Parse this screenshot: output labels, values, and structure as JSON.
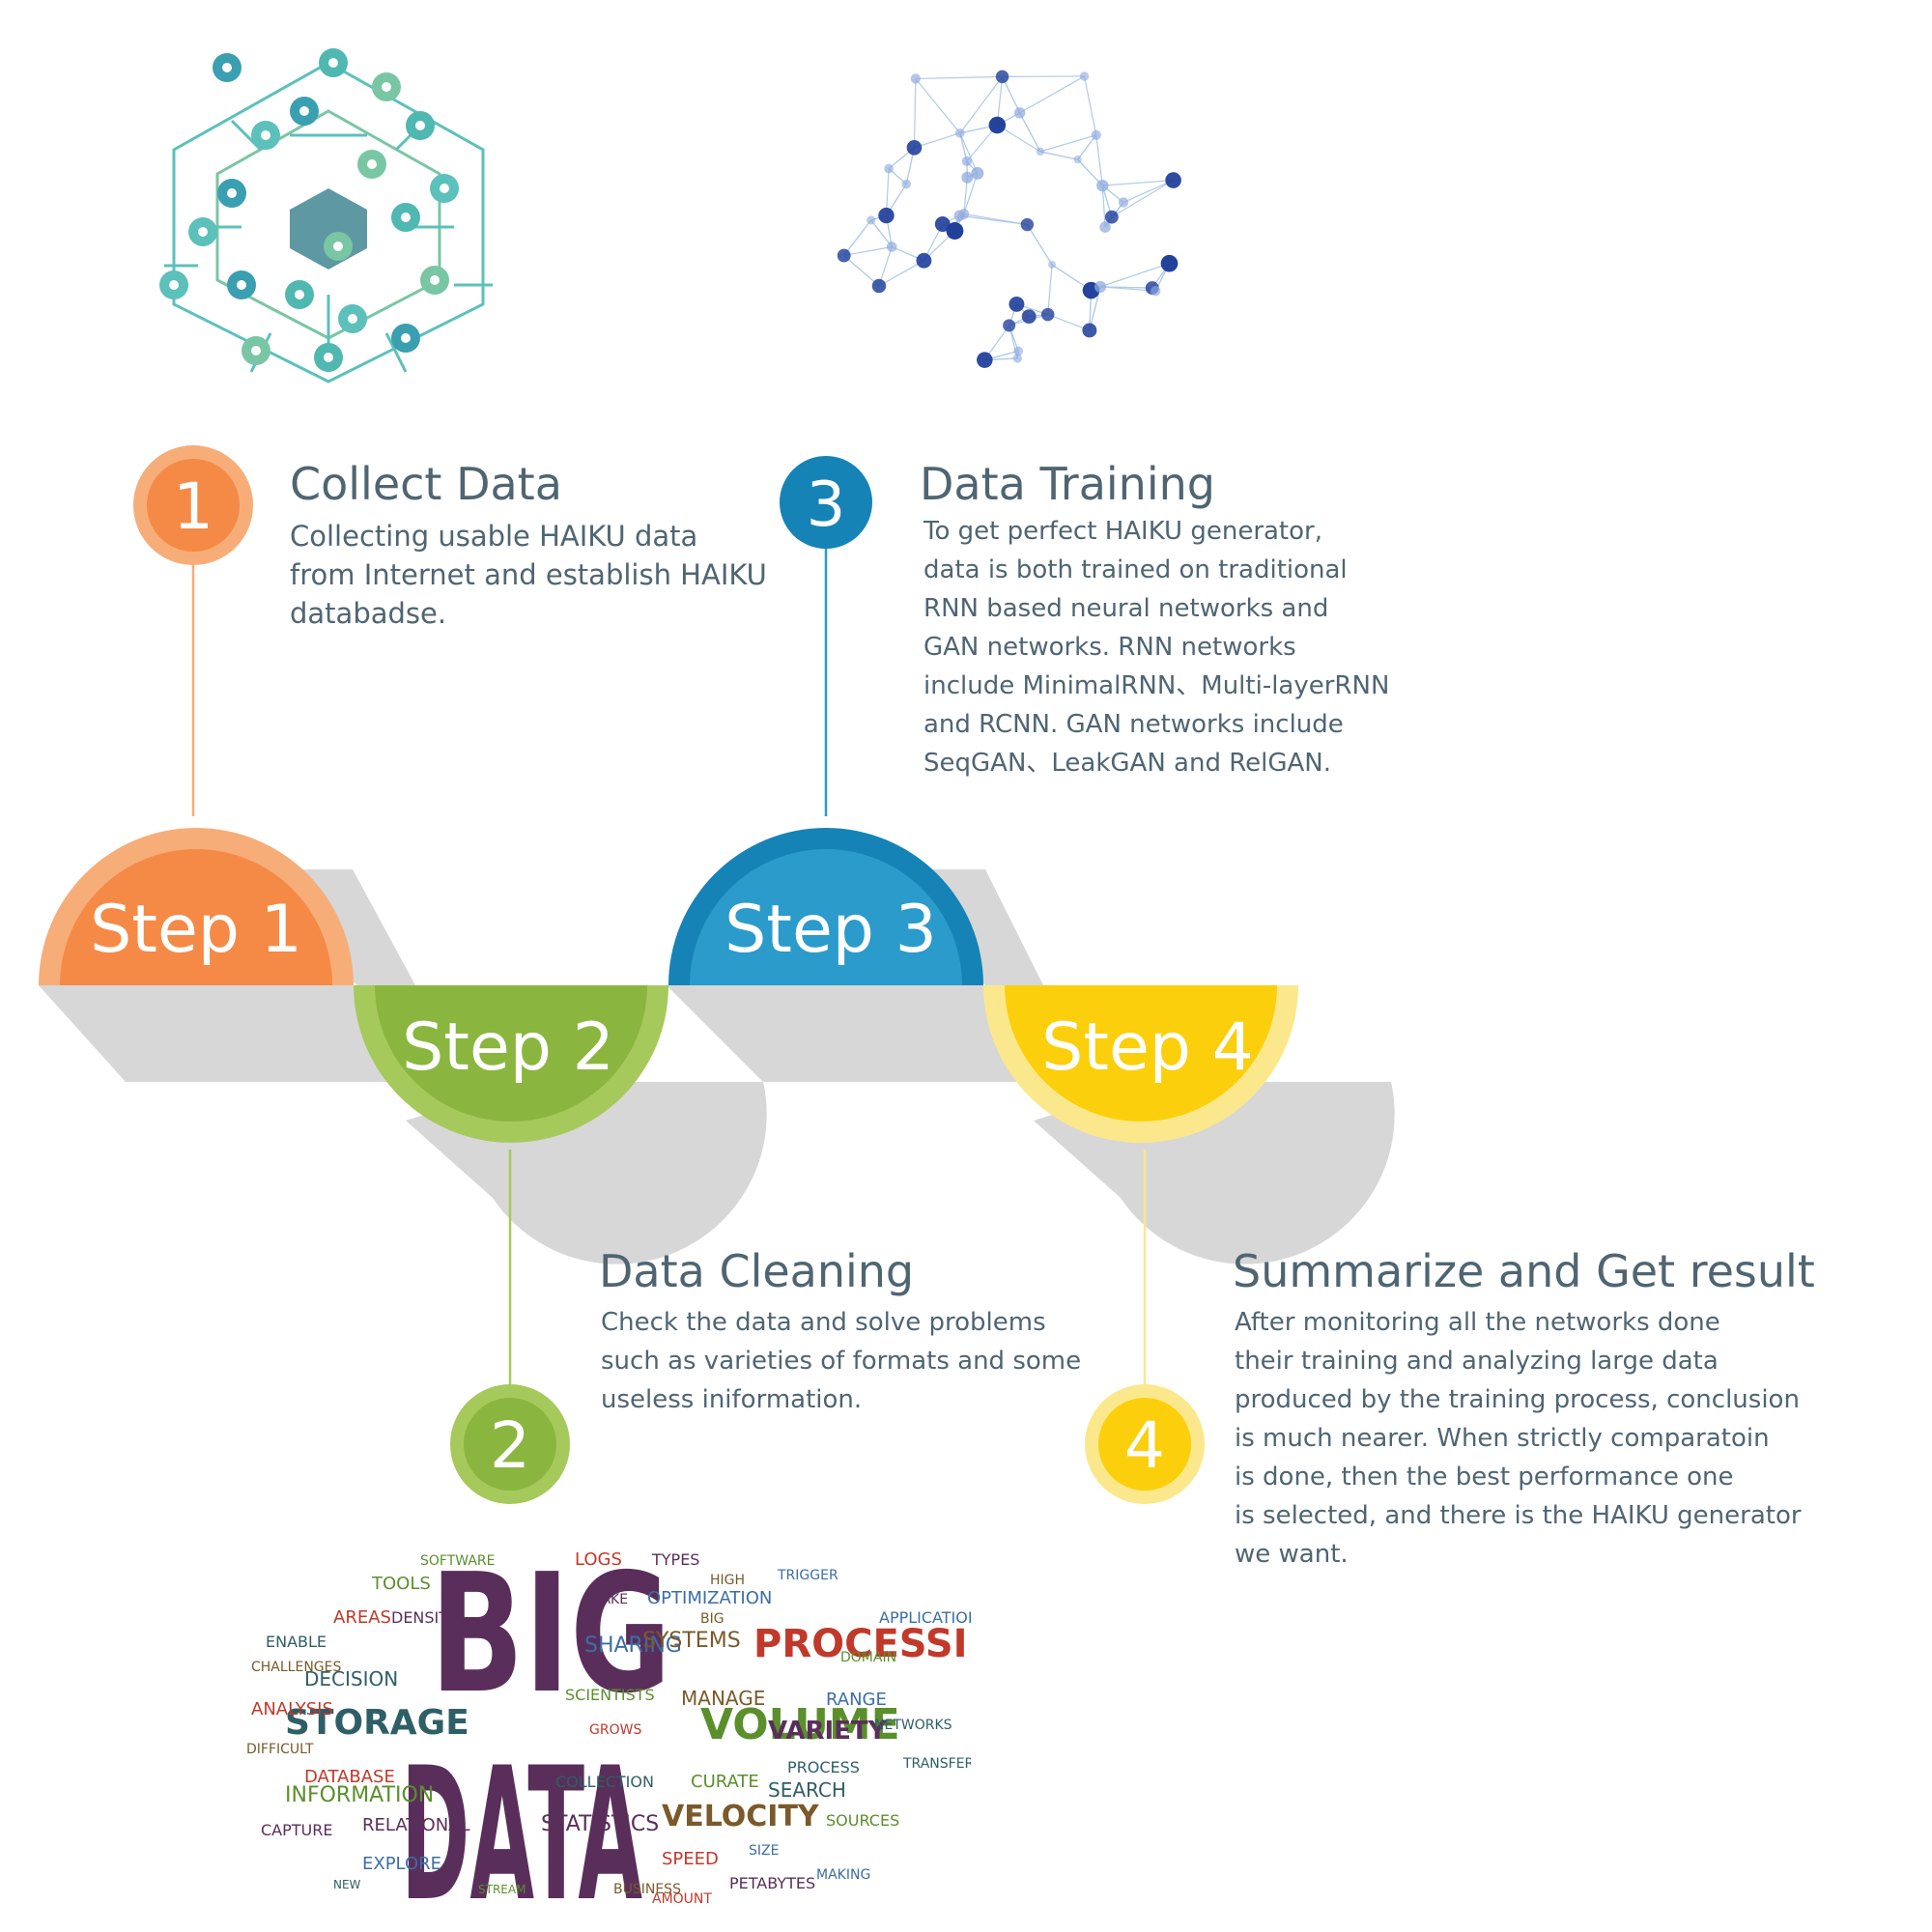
{
  "steps": [
    {
      "badge_number": "1",
      "label": "Step 1",
      "title": "Collect Data",
      "description": "Collecting usable HAIKU data\nfrom Internet and establish HAIKU\ndatabadse."
    },
    {
      "badge_number": "2",
      "label": "Step 2",
      "title": "Data Cleaning",
      "description": "Check the data and solve problems\nsuch as varieties of formats and some\nuseless iniformation."
    },
    {
      "badge_number": "3",
      "label": "Step 3",
      "title": "Data Training",
      "description": "To get perfect HAIKU generator,\ndata is both trained on traditional\nRNN based neural networks and\nGAN networks. RNN networks\ninclude MinimalRNN、Multi-layerRNN\nand RCNN. GAN networks include\nSeqGAN、LeakGAN and RelGAN."
    },
    {
      "badge_number": "4",
      "label": "Step 4",
      "title": "Summarize and Get result",
      "description": "After monitoring all the networks done\ntheir training and analyzing large data\nproduced by the training process,  conclusion\nis much nearer. When strictly comparatoin\nis done, then the best performance one\nis selected, and there is the HAIKU generator\nwe want."
    }
  ],
  "word_cloud": {
    "big": "BIG",
    "data": "DATA",
    "words": [
      "STORAGE",
      "VOLUME",
      "PROCESSING",
      "VARIETY",
      "VELOCITY",
      "SHARING",
      "DECISION",
      "INFORMATION",
      "DATABASE",
      "RELATIONAL",
      "SYSTEMS",
      "OPTIMIZATION",
      "COLLECTION",
      "TOOLS",
      "ANALYSIS",
      "CAPTURE",
      "DIFFICULT",
      "EXPLORE",
      "SEARCH",
      "SOURCES",
      "SPEED",
      "STATISTICS",
      "MANAGE",
      "RANGE",
      "PROCESS",
      "CURATE",
      "LOGS",
      "TYPES",
      "HIGH",
      "TRIGGER",
      "ENABLE",
      "SOFTWARE",
      "AREAS",
      "DENSITY",
      "CHALLENGES",
      "APPLICATIONS",
      "TRANSFER",
      "DOMAIN",
      "AMOUNT",
      "PETABYTES",
      "BUSINESS",
      "MAKING",
      "NETWORKS",
      "SCIENTISTS",
      "GROWS",
      "TAKE",
      "BIG",
      "SIZE",
      "NEW",
      "STREAM"
    ]
  },
  "colors": {
    "step1": "#f58a46",
    "step1_light": "#f7ad78",
    "step2": "#8ab63f",
    "step2_light": "#a6c95c",
    "step3": "#1583b6",
    "step3_light": "#2a9bcb",
    "step4": "#fbcf0b",
    "step4_light": "#fce88c",
    "shadow": "#d7d7d7",
    "text": "#4f6572",
    "cloud_purple": "#5a2e5a",
    "cloud_green": "#5a8f2c",
    "cloud_teal": "#2f5f66",
    "cloud_red": "#c0392b"
  },
  "icons": [
    "monitor-icon",
    "cloud-icon",
    "wifi-icon",
    "clipboard-icon",
    "chip-icon",
    "mail-icon",
    "search-icon",
    "hourglass-icon",
    "battery-icon",
    "power-icon",
    "lightbulb-icon",
    "home-icon",
    "chart-icon",
    "location-icon",
    "refresh-icon",
    "folder-icon",
    "gear-icon",
    "info-icon",
    "clock-icon",
    "phone-icon"
  ]
}
